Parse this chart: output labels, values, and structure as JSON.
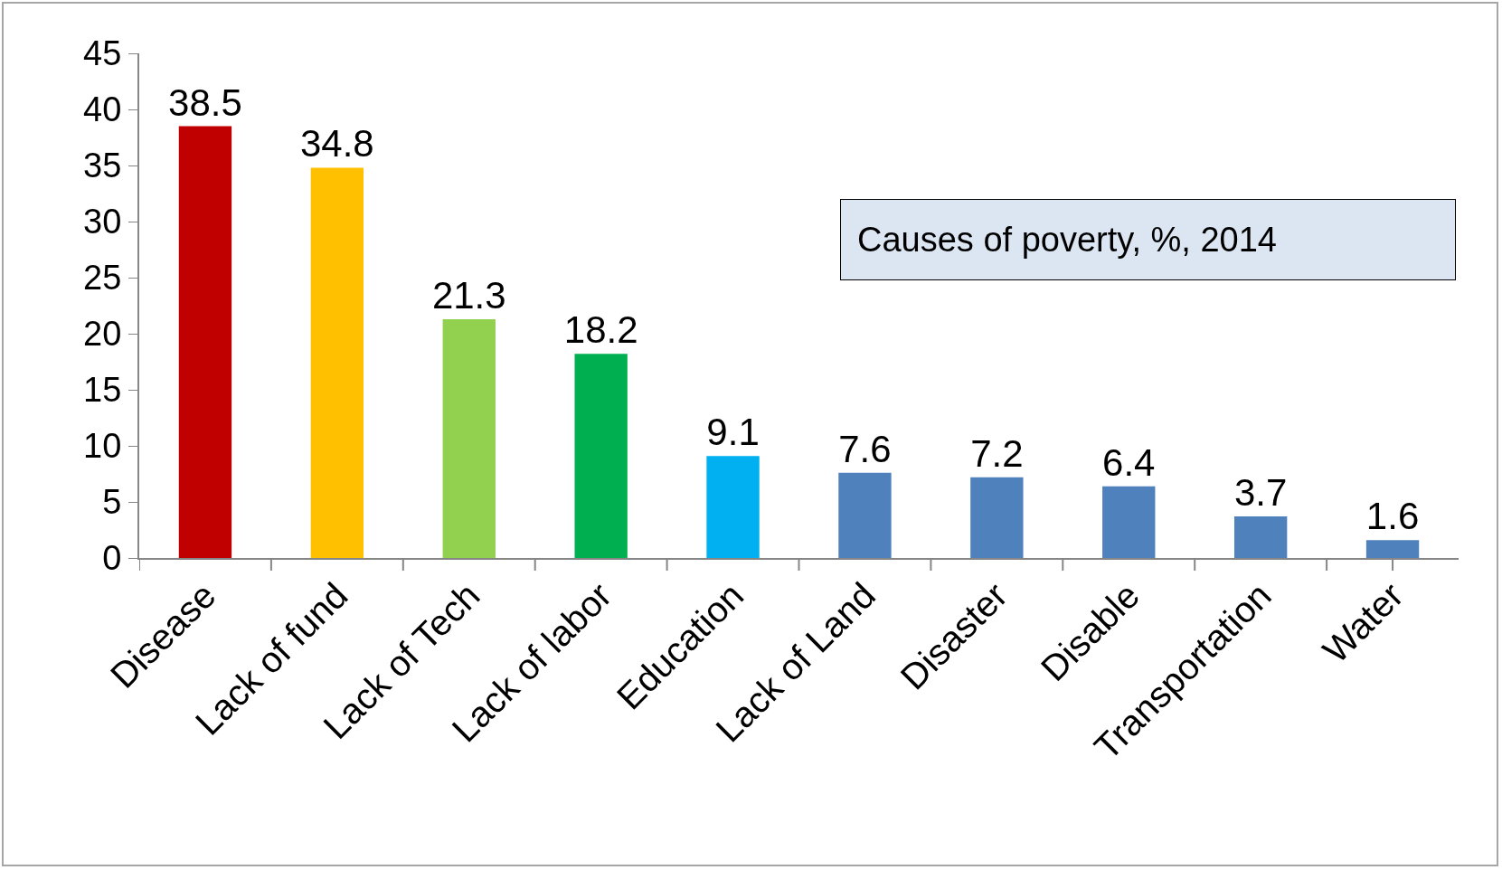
{
  "chart_data": {
    "type": "bar",
    "title": "Causes of poverty, %, 2014",
    "categories": [
      "Disease",
      "Lack of fund",
      "Lack of Tech",
      "Lack of labor",
      "Education",
      "Lack of Land",
      "Disaster",
      "Disable",
      "Transportation",
      "Water"
    ],
    "values": [
      38.5,
      34.8,
      21.3,
      18.2,
      9.1,
      7.6,
      7.2,
      6.4,
      3.7,
      1.6
    ],
    "colors": [
      "#c00000",
      "#ffc000",
      "#92d050",
      "#00b050",
      "#00b0f0",
      "#4f81bd",
      "#4f81bd",
      "#4f81bd",
      "#4f81bd",
      "#4f81bd"
    ],
    "ylim": [
      0,
      45
    ],
    "yticks": [
      0,
      5,
      10,
      15,
      20,
      25,
      30,
      35,
      40,
      45
    ],
    "data_labels": true,
    "grid": false,
    "legend": false
  }
}
